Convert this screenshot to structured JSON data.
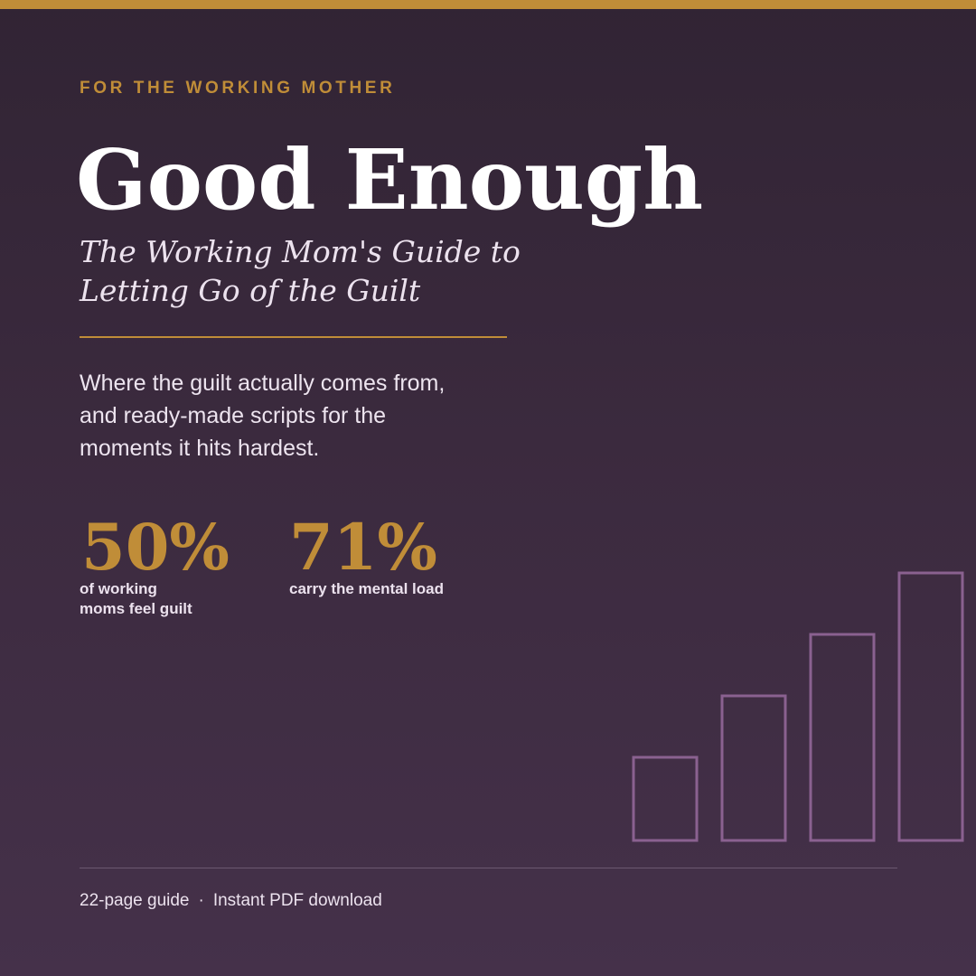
{
  "eyebrow": "FOR THE WORKING MOTHER",
  "title": "Good Enough",
  "subtitle": "The Working Mom's Guide to Letting Go of the Guilt",
  "description": "Where the guilt actually comes from, and ready-made scripts for the moments it hits hardest.",
  "stats": [
    {
      "value": "50%",
      "label": "of working moms feel guilt"
    },
    {
      "value": "71%",
      "label": "carry the mental load"
    }
  ],
  "decorative_bars": {
    "count": 4,
    "relative_heights": [
      1,
      2,
      3,
      4
    ],
    "stroke_color": "#8a6190"
  },
  "footer": {
    "pages": "22-page guide",
    "separator": "·",
    "format": "Instant PDF download"
  },
  "colors": {
    "accent_gold": "#c08d38",
    "background_top": "#312434",
    "background_bottom": "#45314a",
    "text_light": "#ece2ee"
  }
}
